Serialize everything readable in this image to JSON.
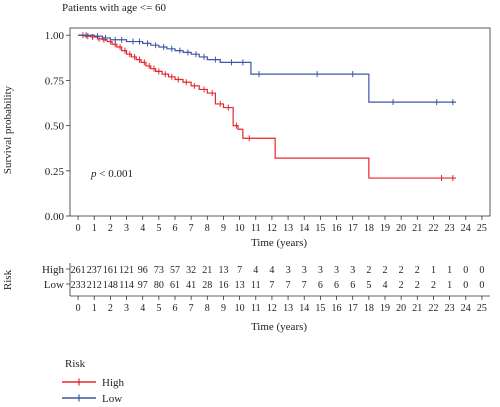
{
  "chart_data": {
    "type": "line",
    "subtype": "kaplan-meier",
    "title": "Patients with age <= 60",
    "xlabel": "Time (years)",
    "ylabel": "Survival probability",
    "xlim": [
      -0.5,
      25.5
    ],
    "ylim": [
      0,
      1.04
    ],
    "x_ticks": [
      0,
      1,
      2,
      3,
      4,
      5,
      6,
      7,
      8,
      9,
      10,
      11,
      12,
      13,
      14,
      15,
      16,
      17,
      18,
      19,
      20,
      21,
      22,
      23,
      24,
      25
    ],
    "y_ticks": [
      0.0,
      0.25,
      0.5,
      0.75,
      1.0
    ],
    "y_tick_labels": [
      "0.00",
      "0.25",
      "0.50",
      "0.75",
      "1.00"
    ],
    "annotation": "p < 0.001",
    "annotation_position": [
      0.7,
      0.19
    ],
    "grid": false,
    "series": [
      {
        "name": "High",
        "color": "#e8262b",
        "steps": [
          [
            0,
            1.0
          ],
          [
            0.4,
            0.995
          ],
          [
            0.8,
            0.99
          ],
          [
            1.2,
            0.98
          ],
          [
            1.5,
            0.975
          ],
          [
            1.8,
            0.965
          ],
          [
            2.1,
            0.95
          ],
          [
            2.4,
            0.935
          ],
          [
            2.7,
            0.915
          ],
          [
            3.0,
            0.895
          ],
          [
            3.3,
            0.88
          ],
          [
            3.6,
            0.865
          ],
          [
            3.9,
            0.85
          ],
          [
            4.2,
            0.83
          ],
          [
            4.5,
            0.815
          ],
          [
            4.8,
            0.8
          ],
          [
            5.2,
            0.785
          ],
          [
            5.6,
            0.77
          ],
          [
            6.0,
            0.755
          ],
          [
            6.5,
            0.74
          ],
          [
            7.0,
            0.72
          ],
          [
            7.5,
            0.7
          ],
          [
            8.0,
            0.68
          ],
          [
            8.5,
            0.62
          ],
          [
            9.0,
            0.6
          ],
          [
            9.6,
            0.5
          ],
          [
            9.9,
            0.48
          ],
          [
            10.2,
            0.43
          ],
          [
            12.2,
            0.32
          ],
          [
            18.0,
            0.21
          ],
          [
            23.4,
            0.21
          ]
        ],
        "censor_x": [
          0.3,
          0.6,
          0.9,
          1.3,
          1.6,
          2.0,
          2.3,
          2.6,
          2.9,
          3.2,
          3.5,
          3.8,
          4.1,
          4.4,
          4.7,
          5.0,
          5.4,
          5.8,
          6.2,
          6.7,
          7.2,
          7.8,
          8.3,
          8.8,
          9.3,
          9.8,
          10.6,
          22.5,
          23.2
        ]
      },
      {
        "name": "Low",
        "color": "#3b57a6",
        "steps": [
          [
            0,
            1.0
          ],
          [
            1.0,
            0.995
          ],
          [
            1.5,
            0.985
          ],
          [
            2.0,
            0.975
          ],
          [
            3.0,
            0.965
          ],
          [
            4.0,
            0.955
          ],
          [
            4.5,
            0.945
          ],
          [
            5.0,
            0.935
          ],
          [
            5.5,
            0.925
          ],
          [
            6.0,
            0.915
          ],
          [
            6.5,
            0.905
          ],
          [
            7.0,
            0.895
          ],
          [
            7.5,
            0.88
          ],
          [
            8.0,
            0.865
          ],
          [
            8.8,
            0.85
          ],
          [
            10.7,
            0.785
          ],
          [
            18.0,
            0.63
          ],
          [
            23.4,
            0.63
          ]
        ],
        "censor_x": [
          0.5,
          1.2,
          1.7,
          2.3,
          2.7,
          3.4,
          3.8,
          4.3,
          4.8,
          5.3,
          5.8,
          6.3,
          6.8,
          7.3,
          7.8,
          8.5,
          9.5,
          10.2,
          11.2,
          14.8,
          17.0,
          19.5,
          22.2,
          23.2
        ]
      }
    ],
    "legend": {
      "title": "Risk",
      "entries": [
        "High",
        "Low"
      ],
      "placement": "bottom-left"
    },
    "risk_table": {
      "title": "Risk",
      "xlabel": "Time (years)",
      "x_ticks": [
        0,
        1,
        2,
        3,
        4,
        5,
        6,
        7,
        8,
        9,
        10,
        11,
        12,
        13,
        14,
        15,
        16,
        17,
        18,
        19,
        20,
        21,
        22,
        23,
        24,
        25
      ],
      "rows": [
        {
          "label": "High",
          "values": [
            261,
            237,
            161,
            121,
            96,
            73,
            57,
            32,
            21,
            13,
            7,
            4,
            4,
            3,
            3,
            3,
            3,
            3,
            2,
            2,
            2,
            2,
            1,
            1,
            0,
            0
          ]
        },
        {
          "label": "Low",
          "values": [
            233,
            212,
            148,
            114,
            97,
            80,
            61,
            41,
            28,
            16,
            13,
            11,
            7,
            7,
            7,
            6,
            6,
            6,
            5,
            4,
            2,
            2,
            2,
            1,
            0,
            0
          ]
        }
      ]
    }
  }
}
